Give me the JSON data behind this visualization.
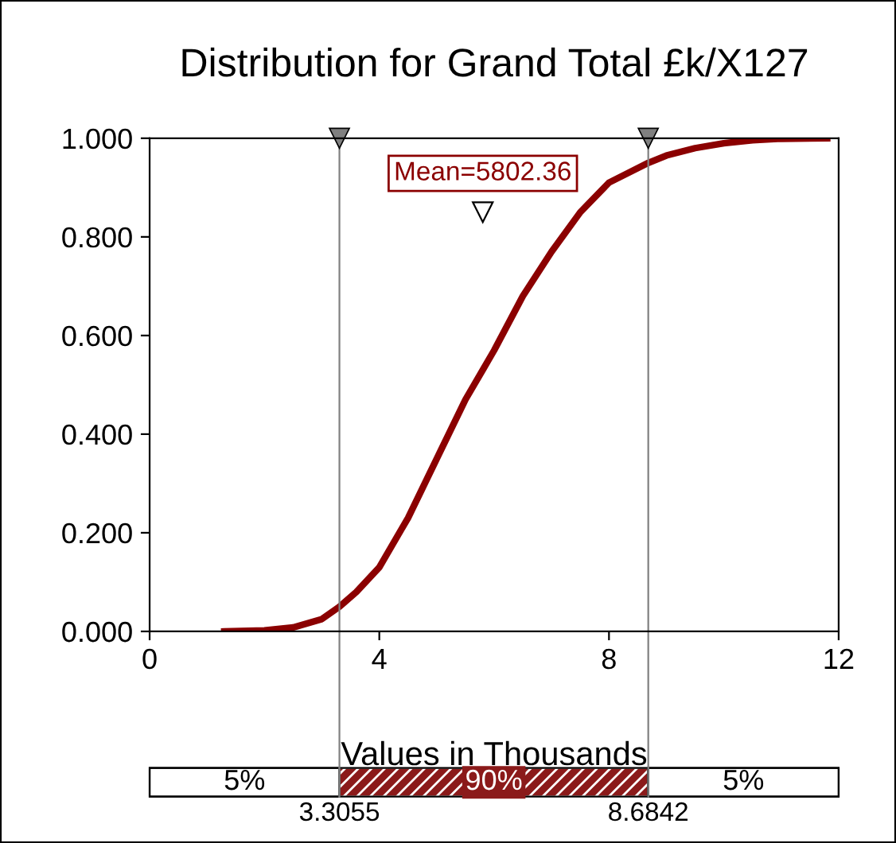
{
  "chart_data": {
    "type": "line",
    "title": "Distribution for Grand Total £k/X127",
    "xlabel": "Values in Thousands",
    "x": [
      1.3,
      2.0,
      2.5,
      3.0,
      3.3055,
      3.6,
      4.0,
      4.5,
      5.0,
      5.5,
      5.8,
      6.0,
      6.5,
      7.0,
      7.5,
      8.0,
      8.6842,
      9.0,
      9.5,
      10.0,
      10.5,
      11.0,
      11.8
    ],
    "series": [
      {
        "color": "#8b0000",
        "values": [
          0.0,
          0.002,
          0.008,
          0.025,
          0.05,
          0.08,
          0.13,
          0.23,
          0.35,
          0.47,
          0.53,
          0.57,
          0.68,
          0.77,
          0.85,
          0.91,
          0.95,
          0.965,
          0.98,
          0.99,
          0.996,
          0.999,
          1.0
        ]
      }
    ],
    "xlim": [
      0,
      12
    ],
    "xticks": [
      0,
      4,
      8,
      12
    ],
    "ylim": [
      0,
      1
    ],
    "yticks": [
      {
        "value": 0,
        "label": "0.000"
      },
      {
        "value": 0.2,
        "label": "0.200"
      },
      {
        "value": 0.4,
        "label": "0.400"
      },
      {
        "value": 0.6,
        "label": "0.600"
      },
      {
        "value": 0.8,
        "label": "0.800"
      },
      {
        "value": 1,
        "label": "1.000"
      }
    ],
    "ref_lines": [
      {
        "axis": "x",
        "value": 3.3055,
        "label": "3.3055",
        "color": "#808080"
      },
      {
        "axis": "x",
        "value": 8.6842,
        "label": "8.6842",
        "color": "#808080"
      }
    ],
    "annotations": [
      {
        "text": "Mean=5802.36",
        "x": 5.80236,
        "y": 0.85
      },
      "5%",
      "90%",
      "5%"
    ],
    "grid": false,
    "legend": false,
    "marker": "none",
    "line_style": "solid"
  }
}
